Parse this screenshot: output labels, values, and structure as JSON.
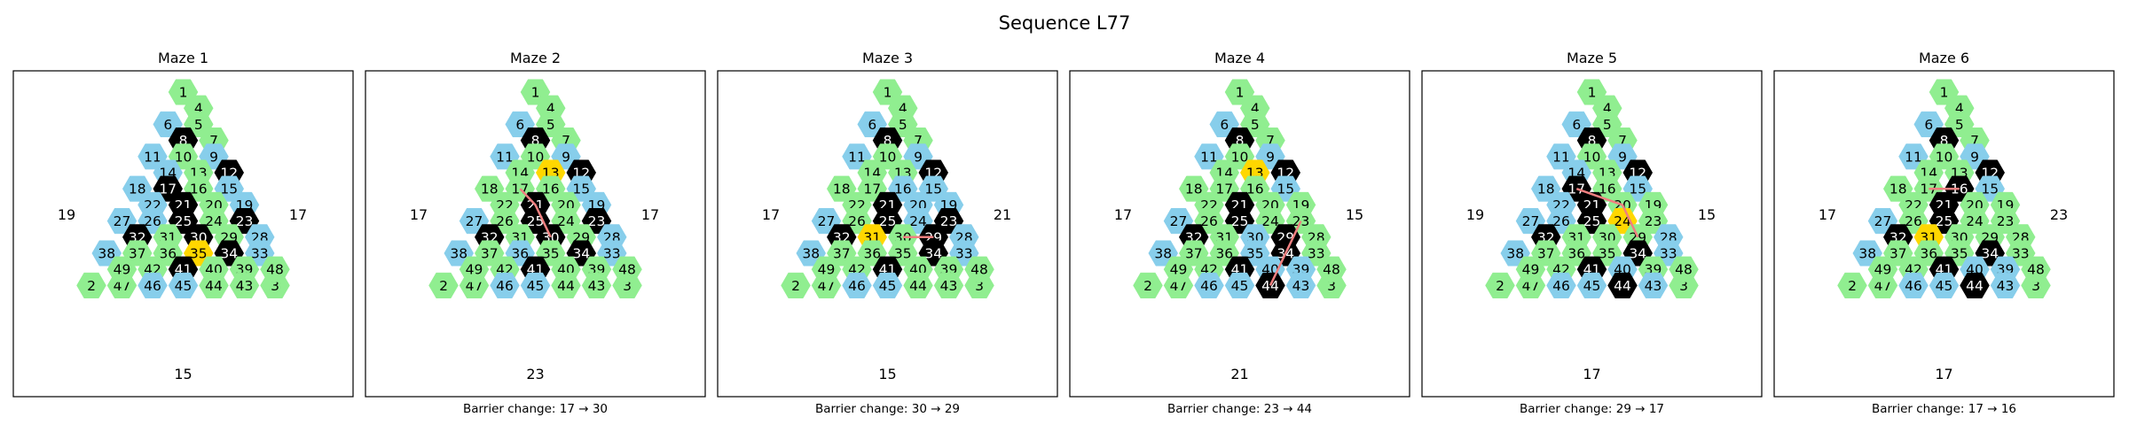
{
  "title": "Sequence L77",
  "colors": {
    "green": "#90EE90",
    "blue": "#87CEEB",
    "black": "#000000",
    "gold": "#FFD700",
    "path": "#F08080",
    "frame": "#000000"
  },
  "hex_layout": [
    [
      1
    ],
    [
      4,
      5
    ],
    [
      6,
      7,
      8
    ],
    [
      9,
      10,
      11,
      12
    ],
    [
      13,
      14,
      15,
      16,
      17
    ],
    [
      18,
      19,
      20,
      21,
      22,
      23
    ],
    [
      24,
      25,
      26,
      27,
      28,
      29,
      30
    ],
    [
      31,
      32,
      33,
      34,
      35,
      36,
      37,
      38
    ],
    [
      39,
      40,
      41,
      42,
      43,
      44,
      45,
      46,
      47
    ],
    [
      2,
      48,
      49,
      3
    ]
  ],
  "panels": [
    {
      "title": "Maze 1",
      "left_number": "19",
      "right_number": "17",
      "bottom_number": "15",
      "caption": "",
      "blue": [
        6,
        9,
        11,
        14,
        15,
        18,
        19,
        22,
        26,
        27,
        28,
        33,
        38,
        45,
        46
      ],
      "black": [
        8,
        12,
        17,
        21,
        23,
        25,
        30,
        32,
        34,
        41
      ],
      "gold": [
        35
      ],
      "path": []
    },
    {
      "title": "Maze 2",
      "left_number": "17",
      "right_number": "17",
      "bottom_number": "23",
      "caption": "Barrier change: 17 → 30",
      "blue": [
        6,
        9,
        11,
        15,
        19,
        27,
        28,
        33,
        36,
        38,
        45,
        46
      ],
      "black": [
        8,
        12,
        21,
        23,
        25,
        30,
        32,
        34,
        41
      ],
      "gold": [
        13
      ],
      "path": [
        17,
        21,
        30
      ]
    },
    {
      "title": "Maze 3",
      "left_number": "17",
      "right_number": "21",
      "bottom_number": "15",
      "caption": "Barrier change: 30 → 29",
      "blue": [
        6,
        9,
        11,
        15,
        16,
        19,
        20,
        24,
        27,
        28,
        33,
        38,
        45,
        46
      ],
      "black": [
        8,
        12,
        21,
        23,
        25,
        29,
        32,
        34,
        41
      ],
      "gold": [
        31
      ],
      "path": [
        30,
        29
      ]
    },
    {
      "title": "Maze 4",
      "left_number": "17",
      "right_number": "15",
      "bottom_number": "21",
      "caption": "Barrier change: 23 → 44",
      "blue": [
        6,
        9,
        11,
        15,
        27,
        30,
        35,
        38,
        39,
        40,
        43,
        45,
        46
      ],
      "black": [
        8,
        12,
        21,
        25,
        29,
        32,
        34,
        41,
        44
      ],
      "gold": [
        13
      ],
      "path": [
        23,
        34,
        44
      ]
    },
    {
      "title": "Maze 5",
      "left_number": "19",
      "right_number": "15",
      "bottom_number": "17",
      "caption": "Barrier change: 29 → 17",
      "blue": [
        6,
        9,
        11,
        14,
        15,
        18,
        22,
        26,
        27,
        28,
        33,
        38,
        40,
        43,
        45,
        46
      ],
      "black": [
        8,
        12,
        17,
        21,
        25,
        32,
        34,
        41,
        44
      ],
      "gold": [
        24
      ],
      "path": [
        17,
        20,
        29
      ]
    },
    {
      "title": "Maze 6",
      "left_number": "17",
      "right_number": "23",
      "bottom_number": "17",
      "caption": "Barrier change: 17 → 16",
      "blue": [
        6,
        9,
        11,
        15,
        27,
        38,
        39,
        40,
        43,
        45,
        46
      ],
      "black": [
        8,
        12,
        16,
        21,
        25,
        32,
        34,
        41,
        44
      ],
      "gold": [
        31
      ],
      "path": [
        17,
        16
      ]
    }
  ]
}
